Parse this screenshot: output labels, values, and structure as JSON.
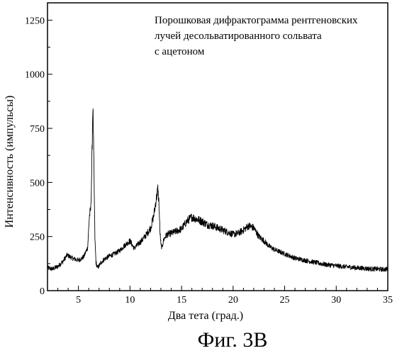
{
  "figure": {
    "caption": "Фиг. 3В"
  },
  "chart_data": {
    "type": "line",
    "title": "",
    "annotation": [
      "Порошковая дифрактограмма рентгеновских",
      "лучей десольватированного сольвата",
      "с ацетоном"
    ],
    "xlabel": "Два тета (град.)",
    "ylabel": "Интенсивность (импульсы)",
    "xlim": [
      2,
      35
    ],
    "ylim": [
      0,
      1330
    ],
    "xticks": [
      5,
      10,
      15,
      20,
      25,
      30,
      35
    ],
    "xtick_labels": [
      "5",
      "10",
      "15",
      "20",
      "25",
      "30",
      "35"
    ],
    "yticks": [
      0,
      250,
      500,
      750,
      1000,
      1250
    ],
    "ytick_labels": [
      "0",
      "250",
      "500",
      "750",
      "1000",
      "1250"
    ],
    "grid": false,
    "legend": "none",
    "series": [
      {
        "x": [
          2.0,
          2.5,
          3.0,
          3.5,
          3.9,
          4.4,
          5.0,
          5.5,
          5.9,
          6.05,
          6.2,
          6.3,
          6.4,
          6.5,
          6.6,
          6.7,
          6.85,
          7.0,
          7.2,
          7.5,
          8.0,
          8.5,
          9.0,
          9.5,
          10.0,
          10.4,
          10.8,
          11.2,
          11.6,
          12.0,
          12.3,
          12.5,
          12.7,
          12.8,
          12.9,
          13.0,
          13.1,
          13.3,
          13.6,
          14.0,
          14.5,
          15.0,
          15.5,
          16.0,
          16.5,
          17.0,
          17.5,
          18.0,
          18.5,
          19.0,
          19.5,
          20.0,
          20.5,
          21.0,
          21.5,
          22.0,
          22.5,
          23.0,
          23.5,
          24.0,
          24.5,
          25.0,
          25.5,
          26.0,
          26.5,
          27.0,
          27.5,
          28.0,
          28.5,
          29.0,
          29.5,
          30.0,
          30.5,
          31.0,
          31.5,
          32.0,
          32.5,
          33.0,
          33.5,
          34.0,
          34.5,
          35.0
        ],
        "y": [
          105,
          100,
          112,
          135,
          165,
          150,
          140,
          155,
          200,
          340,
          380,
          580,
          860,
          570,
          240,
          130,
          105,
          115,
          130,
          145,
          160,
          170,
          185,
          210,
          230,
          195,
          215,
          235,
          260,
          290,
          345,
          410,
          470,
          410,
          280,
          210,
          200,
          240,
          260,
          265,
          275,
          285,
          320,
          340,
          330,
          320,
          305,
          300,
          290,
          280,
          270,
          260,
          265,
          280,
          300,
          290,
          250,
          230,
          205,
          190,
          180,
          170,
          160,
          150,
          145,
          140,
          135,
          130,
          125,
          120,
          118,
          115,
          112,
          110,
          108,
          105,
          104,
          102,
          100,
          100,
          98,
          100
        ]
      }
    ]
  }
}
